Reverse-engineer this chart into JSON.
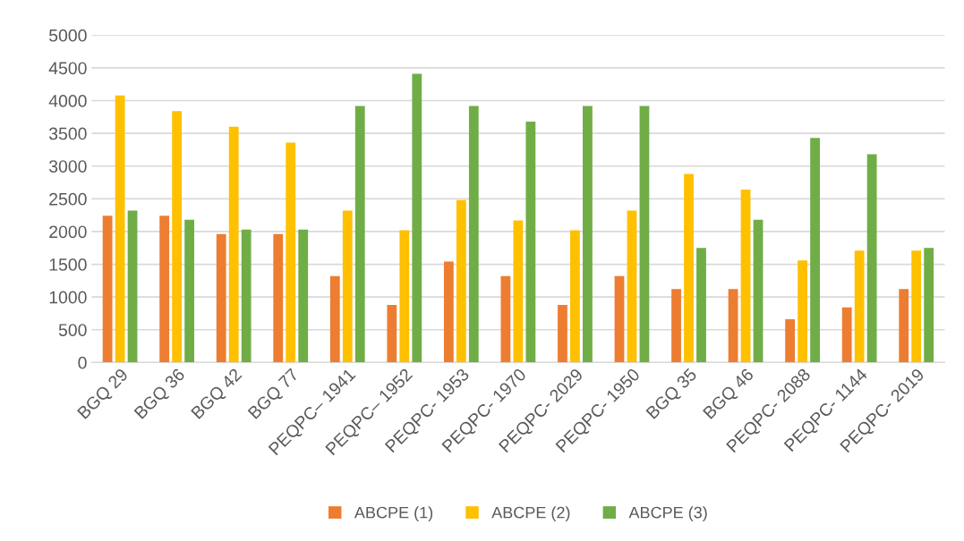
{
  "chart_data": {
    "type": "bar",
    "categories": [
      "BGQ 29",
      "BGQ 36",
      "BGQ 42",
      "BGQ 77",
      "PEQPC– 1941",
      "PEQPC– 1952",
      "PEQPC- 1953",
      "PEQPC- 1970",
      "PEQPC- 2029",
      "PEQPC- 1950",
      "BGQ 35",
      "BGQ 46",
      "PEQPC- 2088",
      "PEQPC- 1144",
      "PEQPC- 2019"
    ],
    "series": [
      {
        "name": "ABCPE (1)",
        "color": "#ed7d31",
        "values": [
          2240,
          2240,
          1960,
          1960,
          1320,
          880,
          1540,
          1320,
          880,
          1320,
          1120,
          1120,
          660,
          840,
          1120
        ]
      },
      {
        "name": "ABCPE (2)",
        "color": "#ffc000",
        "values": [
          4080,
          3840,
          3600,
          3360,
          2320,
          2020,
          2480,
          2170,
          2020,
          2320,
          2880,
          2640,
          1560,
          1710,
          1710
        ]
      },
      {
        "name": "ABCPE (3)",
        "color": "#70ad47",
        "values": [
          2320,
          2180,
          2030,
          2030,
          3920,
          4410,
          3920,
          3680,
          3920,
          3920,
          1750,
          2180,
          3430,
          3180,
          1750
        ]
      }
    ],
    "ylim": [
      0,
      5000
    ],
    "yticks": [
      0,
      500,
      1000,
      1500,
      2000,
      2500,
      3000,
      3500,
      4000,
      4500,
      5000
    ],
    "grid": "y",
    "legend": "bottom"
  }
}
